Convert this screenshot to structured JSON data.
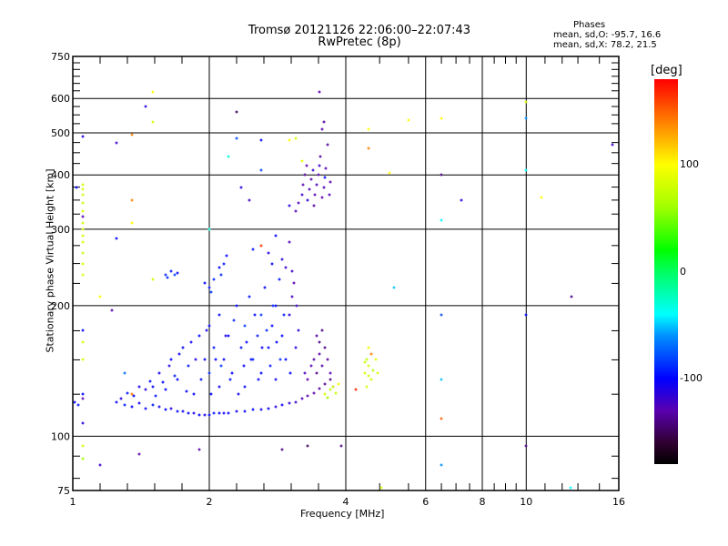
{
  "chart_data": {
    "type": "scatter",
    "title": "Tromsø 20121126 22:06:00–22:07:43",
    "subtitle": "RwPretec (8p)",
    "xlabel": "Frequency [MHz]",
    "ylabel": "Stationary phase Virtual Height [km]",
    "xscale": "log",
    "yscale": "log",
    "xlim": [
      1,
      16
    ],
    "ylim": [
      75,
      750
    ],
    "xticks": [
      "1",
      "2",
      "4",
      "6",
      "8",
      "10",
      "16"
    ],
    "xtick_values": [
      1,
      2,
      4,
      6,
      8,
      10,
      16
    ],
    "yticks": [
      "75",
      "100",
      "200",
      "300",
      "400",
      "500",
      "600",
      "750"
    ],
    "ytick_values": [
      75,
      100,
      200,
      300,
      400,
      500,
      600,
      750
    ],
    "grid": true,
    "stats": {
      "heading": "Phases",
      "o_label": "mean, sd,O:",
      "o_value": "-95.7, 16.6",
      "x_label": "mean, sd,X:",
      "x_value": "78.2, 21.5"
    },
    "colorbar": {
      "title": "[deg]",
      "range": [
        -180,
        180
      ],
      "ticks": [
        "100",
        "0",
        "-100"
      ],
      "tick_values": [
        100,
        0,
        -100
      ]
    },
    "point_fields": [
      "frequency_MHz",
      "height_km",
      "phase_deg"
    ],
    "points": [
      [
        1.25,
        120,
        -100
      ],
      [
        1.3,
        118,
        -95
      ],
      [
        1.35,
        117,
        -100
      ],
      [
        1.4,
        119,
        -105
      ],
      [
        1.45,
        116,
        -100
      ],
      [
        1.5,
        118,
        -95
      ],
      [
        1.55,
        117,
        -105
      ],
      [
        1.6,
        115,
        -100
      ],
      [
        1.65,
        116,
        -110
      ],
      [
        1.7,
        114,
        -100
      ],
      [
        1.75,
        114,
        -105
      ],
      [
        1.8,
        113,
        -100
      ],
      [
        1.85,
        113,
        -110
      ],
      [
        1.9,
        112,
        -100
      ],
      [
        1.95,
        112,
        -105
      ],
      [
        2.0,
        112,
        -100
      ],
      [
        2.05,
        113,
        -95
      ],
      [
        2.1,
        113,
        -100
      ],
      [
        2.15,
        113,
        -105
      ],
      [
        2.2,
        113,
        -100
      ],
      [
        2.3,
        114,
        -105
      ],
      [
        2.4,
        114,
        -100
      ],
      [
        2.5,
        115,
        -100
      ],
      [
        2.6,
        115,
        -105
      ],
      [
        2.7,
        116,
        -100
      ],
      [
        2.8,
        117,
        -110
      ],
      [
        2.9,
        118,
        -105
      ],
      [
        3.0,
        119,
        -115
      ],
      [
        3.1,
        120,
        -120
      ],
      [
        3.2,
        122,
        -125
      ],
      [
        3.3,
        124,
        -130
      ],
      [
        3.4,
        126,
        -130
      ],
      [
        3.5,
        129,
        -135
      ],
      [
        3.6,
        132,
        -135
      ],
      [
        3.7,
        135,
        -140
      ],
      [
        1.28,
        122,
        -110
      ],
      [
        1.32,
        126,
        -95
      ],
      [
        1.36,
        124,
        -100
      ],
      [
        1.4,
        130,
        -105
      ],
      [
        1.45,
        128,
        -110
      ],
      [
        1.48,
        134,
        -100
      ],
      [
        1.5,
        130,
        -100
      ],
      [
        1.52,
        124,
        -95
      ],
      [
        1.55,
        140,
        -105
      ],
      [
        1.58,
        133,
        -100
      ],
      [
        1.6,
        128,
        -100
      ],
      [
        1.63,
        145,
        -110
      ],
      [
        1.65,
        150,
        -100
      ],
      [
        1.68,
        138,
        -95
      ],
      [
        1.7,
        135,
        -100
      ],
      [
        1.72,
        155,
        -105
      ],
      [
        1.75,
        160,
        -100
      ],
      [
        1.78,
        127,
        -100
      ],
      [
        1.8,
        145,
        -95
      ],
      [
        1.82,
        165,
        -105
      ],
      [
        1.85,
        125,
        -100
      ],
      [
        1.87,
        150,
        -110
      ],
      [
        1.9,
        170,
        -100
      ],
      [
        1.92,
        135,
        -95
      ],
      [
        1.95,
        150,
        -100
      ],
      [
        1.97,
        175,
        -105
      ],
      [
        2.0,
        180,
        -100
      ],
      [
        2.0,
        140,
        -90
      ],
      [
        2.02,
        125,
        -100
      ],
      [
        2.05,
        160,
        -95
      ],
      [
        2.07,
        150,
        -100
      ],
      [
        2.1,
        130,
        -105
      ],
      [
        2.1,
        190,
        -100
      ],
      [
        2.12,
        145,
        -85
      ],
      [
        2.15,
        150,
        -100
      ],
      [
        2.17,
        170,
        -110
      ],
      [
        2.2,
        170,
        -100
      ],
      [
        2.22,
        135,
        -95
      ],
      [
        2.25,
        140,
        -100
      ],
      [
        2.27,
        185,
        -90
      ],
      [
        2.3,
        200,
        -100
      ],
      [
        2.32,
        125,
        -105
      ],
      [
        2.35,
        160,
        -95
      ],
      [
        2.38,
        145,
        -100
      ],
      [
        2.4,
        130,
        -100
      ],
      [
        2.4,
        180,
        -85
      ],
      [
        2.42,
        165,
        -100
      ],
      [
        2.45,
        210,
        -95
      ],
      [
        2.47,
        150,
        -100
      ],
      [
        2.5,
        150,
        -90
      ],
      [
        2.52,
        190,
        -100
      ],
      [
        2.55,
        170,
        -95
      ],
      [
        2.57,
        135,
        -100
      ],
      [
        2.6,
        140,
        -100
      ],
      [
        2.6,
        190,
        -85
      ],
      [
        2.62,
        160,
        -105
      ],
      [
        2.65,
        220,
        -100
      ],
      [
        2.67,
        175,
        -90
      ],
      [
        2.7,
        160,
        -100
      ],
      [
        2.72,
        145,
        -95
      ],
      [
        2.75,
        180,
        -100
      ],
      [
        2.77,
        200,
        -90
      ],
      [
        2.8,
        200,
        -100
      ],
      [
        2.8,
        135,
        -105
      ],
      [
        2.82,
        165,
        -100
      ],
      [
        2.85,
        230,
        -95
      ],
      [
        2.87,
        150,
        -85
      ],
      [
        2.9,
        170,
        -100
      ],
      [
        2.92,
        190,
        -95
      ],
      [
        2.95,
        150,
        -100
      ],
      [
        3.0,
        190,
        -110
      ],
      [
        3.02,
        140,
        -100
      ],
      [
        3.05,
        240,
        -120
      ],
      [
        3.05,
        210,
        -125
      ],
      [
        3.08,
        225,
        -130
      ],
      [
        3.1,
        160,
        -110
      ],
      [
        3.12,
        200,
        -120
      ],
      [
        3.15,
        175,
        -115
      ],
      [
        3.25,
        140,
        -125
      ],
      [
        3.3,
        135,
        -130
      ],
      [
        3.35,
        145,
        -130
      ],
      [
        3.4,
        150,
        -135
      ],
      [
        3.45,
        140,
        -140
      ],
      [
        3.5,
        155,
        -130
      ],
      [
        3.55,
        145,
        -135
      ],
      [
        3.6,
        160,
        -140
      ],
      [
        3.65,
        150,
        -135
      ],
      [
        3.7,
        140,
        -130
      ],
      [
        3.75,
        130,
        -125
      ],
      [
        3.5,
        165,
        -140
      ],
      [
        3.55,
        175,
        -140
      ],
      [
        3.45,
        170,
        -135
      ],
      [
        3.6,
        125,
        80
      ],
      [
        3.7,
        128,
        70
      ],
      [
        3.75,
        130,
        85
      ],
      [
        3.8,
        126,
        75
      ],
      [
        3.65,
        123,
        60
      ],
      [
        3.85,
        132,
        95
      ],
      [
        4.4,
        140,
        80
      ],
      [
        4.45,
        150,
        75
      ],
      [
        4.5,
        145,
        85
      ],
      [
        4.55,
        135,
        80
      ],
      [
        4.5,
        160,
        95
      ],
      [
        4.6,
        142,
        70
      ],
      [
        4.45,
        130,
        80
      ],
      [
        4.65,
        150,
        90
      ],
      [
        4.55,
        155,
        140
      ],
      [
        4.7,
        140,
        85
      ],
      [
        4.4,
        148,
        75
      ],
      [
        4.5,
        138,
        80
      ],
      [
        4.2,
        128,
        170
      ],
      [
        1.6,
        235,
        -90
      ],
      [
        1.65,
        240,
        -95
      ],
      [
        1.7,
        238,
        -100
      ],
      [
        1.62,
        232,
        -90
      ],
      [
        1.68,
        236,
        -85
      ],
      [
        1.95,
        225,
        -100
      ],
      [
        2.0,
        220,
        -95
      ],
      [
        2.05,
        230,
        -90
      ],
      [
        2.1,
        245,
        -100
      ],
      [
        2.15,
        250,
        -95
      ],
      [
        2.12,
        235,
        -90
      ],
      [
        2.02,
        215,
        -85
      ],
      [
        2.18,
        260,
        -100
      ],
      [
        2.5,
        270,
        -95
      ],
      [
        2.6,
        275,
        165
      ],
      [
        2.7,
        265,
        -110
      ],
      [
        2.75,
        250,
        -100
      ],
      [
        2.9,
        255,
        -115
      ],
      [
        3.0,
        280,
        -125
      ],
      [
        2.95,
        245,
        -120
      ],
      [
        2.8,
        290,
        -100
      ],
      [
        3.1,
        330,
        -130
      ],
      [
        3.15,
        345,
        -125
      ],
      [
        3.2,
        360,
        -120
      ],
      [
        3.22,
        380,
        -130
      ],
      [
        3.25,
        400,
        -135
      ],
      [
        3.28,
        420,
        -130
      ],
      [
        3.3,
        350,
        -110
      ],
      [
        3.32,
        370,
        -125
      ],
      [
        3.35,
        390,
        -130
      ],
      [
        3.38,
        410,
        -120
      ],
      [
        3.4,
        340,
        -135
      ],
      [
        3.42,
        360,
        -130
      ],
      [
        3.45,
        380,
        -125
      ],
      [
        3.48,
        400,
        -130
      ],
      [
        3.5,
        420,
        -120
      ],
      [
        3.52,
        440,
        -135
      ],
      [
        3.55,
        355,
        -130
      ],
      [
        3.58,
        375,
        -125
      ],
      [
        3.6,
        395,
        -100
      ],
      [
        3.62,
        415,
        -130
      ],
      [
        3.65,
        470,
        -135
      ],
      [
        3.68,
        360,
        -125
      ],
      [
        3.7,
        385,
        -130
      ],
      [
        3.55,
        510,
        -130
      ],
      [
        3.58,
        530,
        -135
      ],
      [
        3.2,
        430,
        90
      ],
      [
        3.0,
        340,
        -110
      ],
      [
        3.1,
        485,
        80
      ],
      [
        1.05,
        490,
        -110
      ],
      [
        1.05,
        380,
        80
      ],
      [
        1.05,
        370,
        85
      ],
      [
        1.05,
        360,
        80
      ],
      [
        1.05,
        345,
        75
      ],
      [
        1.05,
        330,
        85
      ],
      [
        1.05,
        320,
        -130
      ],
      [
        1.05,
        310,
        80
      ],
      [
        1.05,
        300,
        85
      ],
      [
        1.05,
        290,
        80
      ],
      [
        1.05,
        280,
        85
      ],
      [
        1.05,
        265,
        75
      ],
      [
        1.05,
        250,
        80
      ],
      [
        1.05,
        235,
        85
      ],
      [
        1.05,
        175,
        -100
      ],
      [
        1.05,
        165,
        80
      ],
      [
        1.05,
        150,
        85
      ],
      [
        1.05,
        125,
        -100
      ],
      [
        1.05,
        122,
        -130
      ],
      [
        1.05,
        107,
        -110
      ],
      [
        1.05,
        95,
        80
      ],
      [
        1.05,
        89,
        60
      ],
      [
        1.01,
        120,
        -100
      ],
      [
        1.03,
        118,
        -95
      ],
      [
        1.02,
        375,
        -100
      ],
      [
        1.15,
        210,
        100
      ],
      [
        1.25,
        285,
        -100
      ],
      [
        1.25,
        475,
        -120
      ],
      [
        1.35,
        310,
        100
      ],
      [
        1.35,
        350,
        140
      ],
      [
        1.35,
        495,
        140
      ],
      [
        1.45,
        575,
        -110
      ],
      [
        1.5,
        530,
        80
      ],
      [
        1.5,
        620,
        100
      ],
      [
        1.5,
        230,
        80
      ],
      [
        1.22,
        195,
        -130
      ],
      [
        1.3,
        140,
        -70
      ],
      [
        1.35,
        125,
        140
      ],
      [
        1.4,
        91,
        -130
      ],
      [
        1.15,
        86,
        -120
      ],
      [
        1.9,
        93,
        -130
      ],
      [
        2.0,
        300,
        -30
      ],
      [
        2.3,
        560,
        -150
      ],
      [
        2.3,
        485,
        -80
      ],
      [
        2.35,
        375,
        -110
      ],
      [
        2.45,
        350,
        -120
      ],
      [
        2.2,
        440,
        -30
      ],
      [
        2.6,
        480,
        -100
      ],
      [
        2.6,
        410,
        -80
      ],
      [
        3.0,
        480,
        100
      ],
      [
        3.5,
        620,
        -130
      ],
      [
        3.3,
        95,
        -150
      ],
      [
        2.9,
        93,
        -140
      ],
      [
        3.9,
        95,
        -140
      ],
      [
        5.0,
        405,
        100
      ],
      [
        4.5,
        460,
        140
      ],
      [
        4.5,
        510,
        100
      ],
      [
        5.1,
        220,
        -50
      ],
      [
        5.5,
        535,
        100
      ],
      [
        6.5,
        540,
        100
      ],
      [
        6.5,
        400,
        -140
      ],
      [
        6.5,
        315,
        -40
      ],
      [
        6.5,
        190,
        -80
      ],
      [
        6.5,
        135,
        -50
      ],
      [
        6.5,
        110,
        150
      ],
      [
        6.5,
        86,
        -60
      ],
      [
        7.2,
        350,
        -110
      ],
      [
        4.8,
        76,
        80
      ],
      [
        10,
        590,
        80
      ],
      [
        10,
        540,
        -60
      ],
      [
        10,
        410,
        -40
      ],
      [
        10,
        190,
        -100
      ],
      [
        10,
        95,
        -140
      ],
      [
        10.8,
        355,
        100
      ],
      [
        12.5,
        76,
        -40
      ],
      [
        12.6,
        210,
        -140
      ],
      [
        15.5,
        470,
        -120
      ]
    ]
  }
}
